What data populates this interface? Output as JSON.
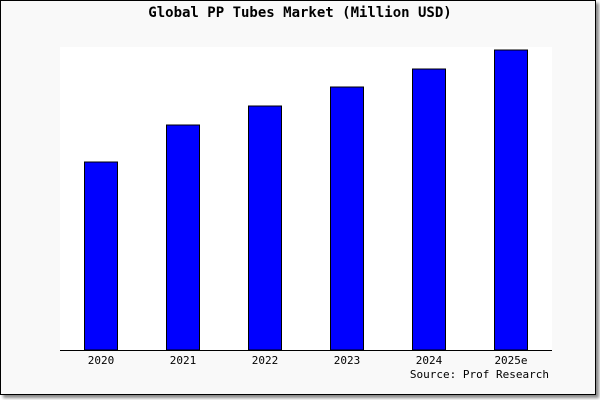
{
  "chart_data": {
    "type": "bar",
    "title": "Global PP Tubes Market (Million USD)",
    "categories": [
      "2020",
      "2021",
      "2022",
      "2023",
      "2024",
      "2025e"
    ],
    "values": [
      188,
      225,
      244,
      263,
      281,
      300
    ],
    "xlabel": "",
    "ylabel": "",
    "ylim": [
      0,
      300
    ],
    "grid": false,
    "bar_color": "#0000ff",
    "source": "Source: Prof Research"
  }
}
